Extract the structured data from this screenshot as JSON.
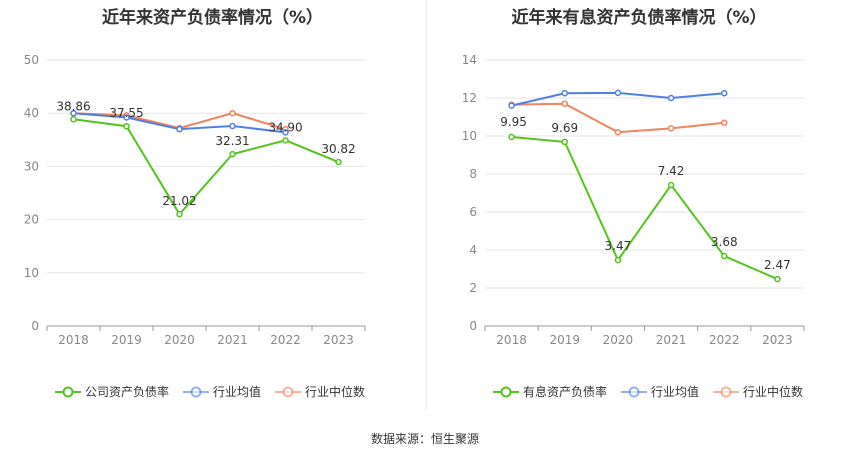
{
  "chart_data": [
    {
      "type": "line",
      "title": "近年来资产负债率情况（%）",
      "categories": [
        "2018",
        "2019",
        "2020",
        "2021",
        "2022",
        "2023"
      ],
      "ylim": [
        0,
        50
      ],
      "yticks": [
        "0",
        "10",
        "20",
        "30",
        "40",
        "50"
      ],
      "series": [
        {
          "name": "公司资产负债率",
          "values": [
            38.86,
            37.55,
            21.02,
            32.31,
            34.9,
            30.82
          ],
          "labels": [
            "38.86",
            "37.55",
            "21.02",
            "32.31",
            "34.90",
            "30.82"
          ],
          "color": "#52c41a"
        },
        {
          "name": "行业均值",
          "values": [
            40.0,
            39.2,
            37.0,
            37.6,
            36.4,
            null
          ],
          "labels": [],
          "color": "#4f7fe6"
        },
        {
          "name": "行业中位数",
          "values": [
            40.0,
            39.6,
            37.2,
            40.0,
            37.0,
            null
          ],
          "labels": [],
          "color": "#f0845c"
        }
      ],
      "grid": true,
      "legend": "bottom"
    },
    {
      "type": "line",
      "title": "近年来有息资产负债率情况（%）",
      "categories": [
        "2018",
        "2019",
        "2020",
        "2021",
        "2022",
        "2023"
      ],
      "ylim": [
        0,
        14
      ],
      "yticks": [
        "0",
        "2",
        "4",
        "6",
        "8",
        "10",
        "12",
        "14"
      ],
      "series": [
        {
          "name": "有息资产负债率",
          "values": [
            9.95,
            9.69,
            3.47,
            7.42,
            3.68,
            2.47
          ],
          "labels": [
            "9.95",
            "9.69",
            "3.47",
            "7.42",
            "3.68",
            "2.47"
          ],
          "color": "#52c41a"
        },
        {
          "name": "行业均值",
          "values": [
            11.6,
            12.25,
            12.27,
            12.0,
            12.25,
            null
          ],
          "labels": [],
          "color": "#4f7fe6"
        },
        {
          "name": "行业中位数",
          "values": [
            11.65,
            11.7,
            10.2,
            10.4,
            10.7,
            null
          ],
          "labels": [],
          "color": "#f0845c"
        }
      ],
      "grid": true,
      "legend": "bottom"
    }
  ],
  "footer": {
    "source": "数据来源：恒生聚源"
  }
}
